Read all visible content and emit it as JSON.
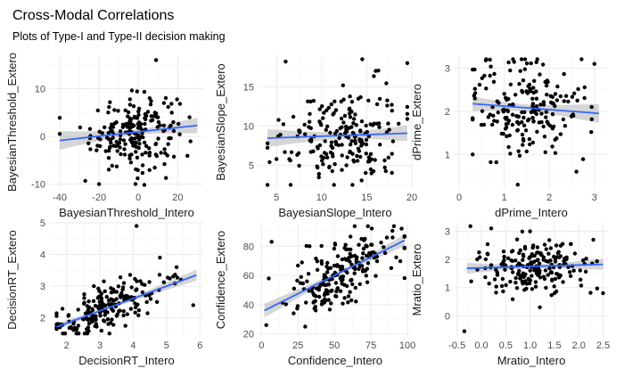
{
  "title": "Cross-Modal Correlations",
  "subtitle": "Plots of Type-I and Type-II decision making",
  "colors": {
    "points": "#000000",
    "fit_line": "#3366FF",
    "band": "#999999",
    "grid": "#ebebeb"
  },
  "chart_data": [
    {
      "type": "scatter",
      "xlabel": "BayesianThreshold_Intero",
      "ylabel": "BayesianThreshold_Extero",
      "xlim": [
        -45,
        33
      ],
      "ylim": [
        -11,
        17
      ],
      "xticks": [
        -40,
        -20,
        0,
        20
      ],
      "yticks": [
        -10,
        0,
        10
      ],
      "grid": true,
      "smooth": "lm",
      "fit": {
        "intercept": 0.95,
        "slope": 0.045
      },
      "n_points": 200,
      "x_spread": {
        "mean": -2,
        "sd": 11,
        "min": -40,
        "max": 30
      },
      "y_noise_sd": 3.8,
      "fixed_points": [
        [
          9,
          16
        ],
        [
          -27,
          -9.3
        ],
        [
          -40,
          3.9
        ],
        [
          26,
          4.0
        ],
        [
          -20,
          -10
        ],
        [
          13,
          7
        ]
      ]
    },
    {
      "type": "scatter",
      "xlabel": "BayesianSlope_Intero",
      "ylabel": "BayesianSlope_Extero",
      "xlim": [
        3,
        20
      ],
      "ylim": [
        2,
        19
      ],
      "xticks": [
        5,
        10,
        15,
        20
      ],
      "yticks": [
        5,
        10,
        15
      ],
      "grid": true,
      "smooth": "lm",
      "fit": {
        "intercept": 8.3,
        "slope": 0.04
      },
      "n_points": 200,
      "x_spread": {
        "mean": 12.3,
        "sd": 3.2,
        "min": 4,
        "max": 19.5
      },
      "y_noise_sd": 3.0,
      "fixed_points": [
        [
          6,
          18.2
        ],
        [
          14.5,
          18.5
        ],
        [
          19.5,
          18
        ],
        [
          4,
          7.8
        ],
        [
          5,
          5.8
        ],
        [
          16,
          17
        ]
      ]
    },
    {
      "type": "scatter",
      "xlabel": "dPrime_Intero",
      "ylabel": "dPrime_Extero",
      "xlim": [
        -0.1,
        3.3
      ],
      "ylim": [
        0.2,
        3.3
      ],
      "xticks": [
        0,
        1,
        2,
        3
      ],
      "yticks": [
        1,
        2,
        3
      ],
      "grid": true,
      "smooth": "lm",
      "fit": {
        "intercept": 2.2,
        "slope": -0.08
      },
      "n_points": 200,
      "x_spread": {
        "mean": 1.5,
        "sd": 0.65,
        "min": 0.3,
        "max": 3.1
      },
      "y_noise_sd": 0.6,
      "fixed_points": [
        [
          0.3,
          1.0
        ],
        [
          0.35,
          2.3
        ],
        [
          1.3,
          0.3
        ],
        [
          3.0,
          3.1
        ],
        [
          2.6,
          0.6
        ]
      ]
    },
    {
      "type": "scatter",
      "xlabel": "DecisionRT_Intero",
      "ylabel": "DecisionRT_Extero",
      "xlim": [
        1.5,
        6.1
      ],
      "ylim": [
        1.4,
        5.0
      ],
      "xticks": [
        2,
        3,
        4,
        5,
        6
      ],
      "yticks": [
        2,
        3,
        4,
        5
      ],
      "grid": true,
      "smooth": "lm",
      "fit": {
        "intercept": 1.05,
        "slope": 0.39
      },
      "n_points": 200,
      "x_spread": {
        "mean": 3.2,
        "sd": 0.8,
        "min": 1.7,
        "max": 5.9
      },
      "y_noise_sd": 0.35,
      "fixed_points": [
        [
          4.1,
          4.9
        ],
        [
          5.8,
          2.4
        ],
        [
          1.8,
          1.7
        ],
        [
          5.3,
          3.6
        ],
        [
          4.8,
          3.9
        ]
      ]
    },
    {
      "type": "scatter",
      "xlabel": "Confidence_Intero",
      "ylabel": "Confidence_Extero",
      "xlim": [
        -2,
        103
      ],
      "ylim": [
        18,
        96
      ],
      "xticks": [
        0,
        25,
        50,
        75,
        100
      ],
      "yticks": [
        20,
        40,
        60,
        80
      ],
      "grid": true,
      "smooth": "lm",
      "fit": {
        "intercept": 35,
        "slope": 0.5
      },
      "n_points": 200,
      "x_spread": {
        "mean": 55,
        "sd": 18,
        "min": 2,
        "max": 98
      },
      "y_noise_sd": 12,
      "fixed_points": [
        [
          7,
          83
        ],
        [
          5,
          58
        ],
        [
          30,
          25
        ],
        [
          96,
          92
        ],
        [
          33,
          80
        ]
      ]
    },
    {
      "type": "scatter",
      "xlabel": "Mratio_Intero",
      "ylabel": "Mratio_Extero",
      "xlim": [
        -0.55,
        2.6
      ],
      "ylim": [
        -0.75,
        3.3
      ],
      "xticks": [
        -0.5,
        0.0,
        0.5,
        1.0,
        1.5,
        2.0,
        2.5
      ],
      "yticks": [
        0,
        1,
        2,
        3
      ],
      "tick_decimals": 1,
      "grid": true,
      "smooth": "lm",
      "fit": {
        "intercept": 1.7,
        "slope": 0.05
      },
      "n_points": 200,
      "x_spread": {
        "mean": 1.0,
        "sd": 0.55,
        "min": -0.3,
        "max": 2.5
      },
      "y_noise_sd": 0.45,
      "fixed_points": [
        [
          -0.35,
          -0.55
        ],
        [
          0.2,
          3.1
        ],
        [
          2.5,
          0.8
        ],
        [
          1.2,
          0.3
        ],
        [
          2.3,
          2.7
        ]
      ]
    }
  ]
}
